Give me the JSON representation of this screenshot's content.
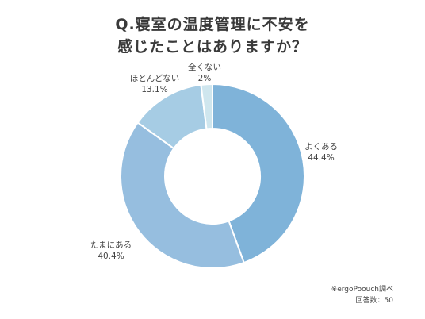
{
  "title_line1": "Q.寝室の温度管理に不安を",
  "title_line2": "感じたことはありますか？",
  "chart_data": {
    "type": "pie",
    "variant": "donut",
    "categories": [
      "よくある",
      "たまにある",
      "ほとんどない",
      "全くない"
    ],
    "values": [
      44.4,
      40.4,
      13.1,
      2
    ],
    "value_labels": [
      "44.4%",
      "40.4%",
      "13.1%",
      "2%"
    ],
    "colors": [
      "#7fb3d9",
      "#96bedf",
      "#a6cce4",
      "#cfe6ee"
    ]
  },
  "footnote": {
    "source": "※ergoPoouch調べ",
    "respondents": "回答数：50"
  }
}
